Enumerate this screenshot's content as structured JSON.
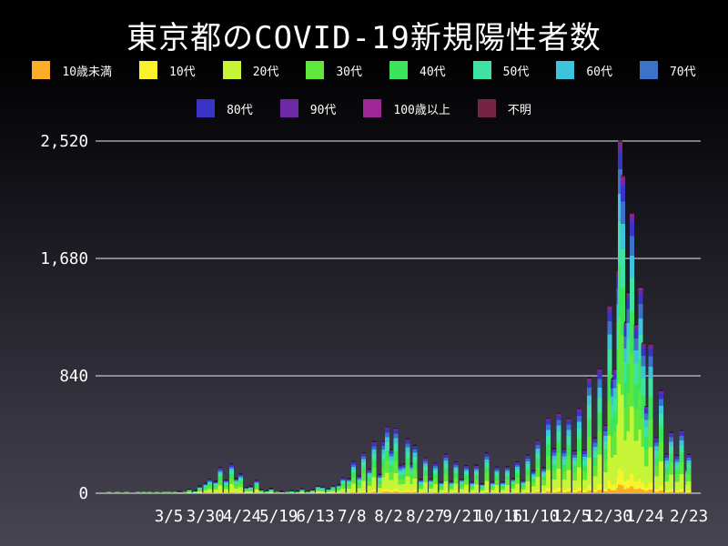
{
  "header": {
    "title": "東京都のCOVID-19新規陽性者数"
  },
  "colors": {
    "background_top": "#000000",
    "background_bottom": "#474450",
    "grid": "#EBEBF0",
    "text": "#FFFFFF"
  },
  "chart_data": {
    "type": "bar",
    "stacked": true,
    "title": "東京都のCOVID-19新規陽性者数",
    "xlabel": "",
    "ylabel": "",
    "ylim": [
      0,
      2520
    ],
    "grid": "horizontal",
    "legend_position": "top",
    "y_ticks": [
      {
        "value": 0,
        "label": "0"
      },
      {
        "value": 840,
        "label": "840"
      },
      {
        "value": 1680,
        "label": "1,680"
      },
      {
        "value": 2520,
        "label": "2,520"
      }
    ],
    "x_ticks": [
      {
        "date": "2020-03-05",
        "label": "3/5"
      },
      {
        "date": "2020-03-30",
        "label": "3/30"
      },
      {
        "date": "2020-04-24",
        "label": "4/24"
      },
      {
        "date": "2020-05-19",
        "label": "5/19"
      },
      {
        "date": "2020-06-13",
        "label": "6/13"
      },
      {
        "date": "2020-07-08",
        "label": "7/8"
      },
      {
        "date": "2020-08-02",
        "label": "8/2"
      },
      {
        "date": "2020-08-27",
        "label": "8/27"
      },
      {
        "date": "2020-09-21",
        "label": "9/21"
      },
      {
        "date": "2020-10-16",
        "label": "10/16"
      },
      {
        "date": "2020-11-10",
        "label": "11/10"
      },
      {
        "date": "2020-12-05",
        "label": "12/5"
      },
      {
        "date": "2020-12-30",
        "label": "12/30"
      },
      {
        "date": "2021-01-24",
        "label": "1/24"
      },
      {
        "date": "2021-02-23",
        "label": "2/23"
      }
    ],
    "groups": [
      {
        "label": "10歳未満",
        "color": "#FBAD27",
        "share_percent": 2.5
      },
      {
        "label": "10代",
        "color": "#F8F32B",
        "share_percent": 4.5
      },
      {
        "label": "20代",
        "color": "#C6F436",
        "share_percent": 24
      },
      {
        "label": "30代",
        "color": "#5FE73C",
        "share_percent": 19
      },
      {
        "label": "40代",
        "color": "#3CE45B",
        "share_percent": 15
      },
      {
        "label": "50代",
        "color": "#3EE2A2",
        "share_percent": 12
      },
      {
        "label": "60代",
        "color": "#3EC3DC",
        "share_percent": 8
      },
      {
        "label": "70代",
        "color": "#3C72C8",
        "share_percent": 7
      },
      {
        "label": "80代",
        "color": "#3933C8",
        "share_percent": 5
      },
      {
        "label": "90代",
        "color": "#6E2AA6",
        "share_percent": 2.2
      },
      {
        "label": "100歳以上",
        "color": "#9E2796",
        "share_percent": 0.3
      },
      {
        "label": "不明",
        "color": "#782342",
        "share_percent": 0.5
      }
    ],
    "points": [
      [
        "2020-01-24",
        1
      ],
      [
        "2020-01-30",
        1
      ],
      [
        "2020-02-05",
        2
      ],
      [
        "2020-02-13",
        3
      ],
      [
        "2020-02-17",
        3
      ],
      [
        "2020-02-21",
        3
      ],
      [
        "2020-02-26",
        2
      ],
      [
        "2020-03-02",
        4
      ],
      [
        "2020-03-05",
        10
      ],
      [
        "2020-03-09",
        5
      ],
      [
        "2020-03-12",
        11
      ],
      [
        "2020-03-16",
        10
      ],
      [
        "2020-03-19",
        25
      ],
      [
        "2020-03-23",
        16
      ],
      [
        "2020-03-26",
        47
      ],
      [
        "2020-03-30",
        68
      ],
      [
        "2020-04-02",
        97
      ],
      [
        "2020-04-06",
        83
      ],
      [
        "2020-04-09",
        181
      ],
      [
        "2020-04-13",
        91
      ],
      [
        "2020-04-17",
        206
      ],
      [
        "2020-04-20",
        102
      ],
      [
        "2020-04-23",
        134
      ],
      [
        "2020-04-27",
        39
      ],
      [
        "2020-04-30",
        46
      ],
      [
        "2020-05-04",
        87
      ],
      [
        "2020-05-07",
        23
      ],
      [
        "2020-05-11",
        15
      ],
      [
        "2020-05-14",
        30
      ],
      [
        "2020-05-18",
        10
      ],
      [
        "2020-05-21",
        11
      ],
      [
        "2020-05-25",
        8
      ],
      [
        "2020-05-28",
        15
      ],
      [
        "2020-06-01",
        13
      ],
      [
        "2020-06-04",
        28
      ],
      [
        "2020-06-08",
        13
      ],
      [
        "2020-06-11",
        22
      ],
      [
        "2020-06-15",
        48
      ],
      [
        "2020-06-18",
        41
      ],
      [
        "2020-06-22",
        29
      ],
      [
        "2020-06-25",
        48
      ],
      [
        "2020-06-29",
        58
      ],
      [
        "2020-07-02",
        107
      ],
      [
        "2020-07-06",
        102
      ],
      [
        "2020-07-09",
        224
      ],
      [
        "2020-07-13",
        119
      ],
      [
        "2020-07-16",
        286
      ],
      [
        "2020-07-20",
        168
      ],
      [
        "2020-07-23",
        366
      ],
      [
        "2020-07-27",
        131
      ],
      [
        "2020-07-30",
        367
      ],
      [
        "2020-08-01",
        472
      ],
      [
        "2020-08-04",
        309
      ],
      [
        "2020-08-07",
        462
      ],
      [
        "2020-08-10",
        197
      ],
      [
        "2020-08-13",
        206
      ],
      [
        "2020-08-15",
        385
      ],
      [
        "2020-08-18",
        207
      ],
      [
        "2020-08-20",
        339
      ],
      [
        "2020-08-24",
        95
      ],
      [
        "2020-08-27",
        250
      ],
      [
        "2020-08-31",
        100
      ],
      [
        "2020-09-03",
        211
      ],
      [
        "2020-09-07",
        77
      ],
      [
        "2020-09-10",
        276
      ],
      [
        "2020-09-14",
        80
      ],
      [
        "2020-09-17",
        220
      ],
      [
        "2020-09-21",
        98
      ],
      [
        "2020-09-24",
        195
      ],
      [
        "2020-09-28",
        78
      ],
      [
        "2020-10-01",
        196
      ],
      [
        "2020-10-05",
        65
      ],
      [
        "2020-10-08",
        284
      ],
      [
        "2020-10-12",
        78
      ],
      [
        "2020-10-15",
        184
      ],
      [
        "2020-10-19",
        78
      ],
      [
        "2020-10-22",
        186
      ],
      [
        "2020-10-26",
        102
      ],
      [
        "2020-10-29",
        221
      ],
      [
        "2020-11-02",
        87
      ],
      [
        "2020-11-05",
        269
      ],
      [
        "2020-11-09",
        157
      ],
      [
        "2020-11-12",
        374
      ],
      [
        "2020-11-16",
        180
      ],
      [
        "2020-11-19",
        534
      ],
      [
        "2020-11-23",
        314
      ],
      [
        "2020-11-26",
        570
      ],
      [
        "2020-11-30",
        311
      ],
      [
        "2020-12-03",
        533
      ],
      [
        "2020-12-07",
        299
      ],
      [
        "2020-12-10",
        602
      ],
      [
        "2020-12-14",
        305
      ],
      [
        "2020-12-17",
        822
      ],
      [
        "2020-12-21",
        392
      ],
      [
        "2020-12-24",
        888
      ],
      [
        "2020-12-28",
        481
      ],
      [
        "2020-12-31",
        1337
      ],
      [
        "2021-01-02",
        814
      ],
      [
        "2021-01-04",
        884
      ],
      [
        "2021-01-06",
        1591
      ],
      [
        "2021-01-07",
        2520
      ],
      [
        "2021-01-09",
        2268
      ],
      [
        "2021-01-11",
        1219
      ],
      [
        "2021-01-13",
        1433
      ],
      [
        "2021-01-15",
        2001
      ],
      [
        "2021-01-18",
        1204
      ],
      [
        "2021-01-21",
        1471
      ],
      [
        "2021-01-23",
        1070
      ],
      [
        "2021-01-25",
        618
      ],
      [
        "2021-01-28",
        1064
      ],
      [
        "2021-02-01",
        393
      ],
      [
        "2021-02-04",
        734
      ],
      [
        "2021-02-08",
        276
      ],
      [
        "2021-02-11",
        434
      ],
      [
        "2021-02-15",
        266
      ],
      [
        "2021-02-18",
        445
      ],
      [
        "2021-02-22",
        178
      ],
      [
        "2021-02-23",
        275
      ]
    ]
  }
}
